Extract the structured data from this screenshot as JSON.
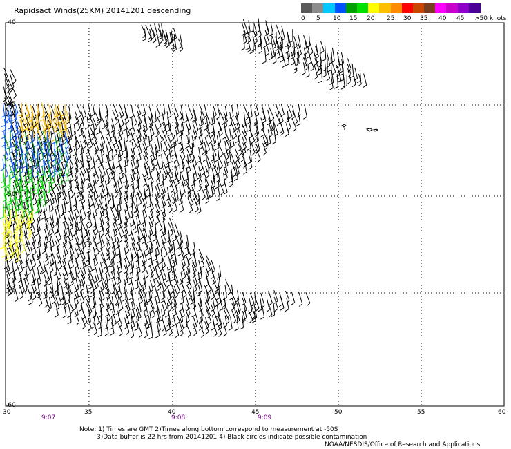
{
  "title": "Rapidsact Winds(25KM) 20141201 descending",
  "legend": {
    "colors": [
      "#5a5a5a",
      "#8c8c8c",
      "#00c8ff",
      "#0050ff",
      "#00a000",
      "#00e000",
      "#ffff00",
      "#ffbe00",
      "#ff8c00",
      "#ff0000",
      "#c84600",
      "#783c1e",
      "#ff00ff",
      "#c800c8",
      "#8c00c8",
      "#4b0096"
    ],
    "labels": [
      "0",
      "5",
      "10",
      "15",
      "20",
      "25",
      "30",
      "35",
      "40",
      "45",
      ">50 knots"
    ]
  },
  "axes": {
    "x_ticks": [
      "30",
      "35",
      "40",
      "45",
      "50",
      "55",
      "60"
    ],
    "y_ticks": [
      "-40",
      "-45",
      "-50",
      "-55",
      "-60"
    ]
  },
  "times": [
    "9:07",
    "9:08",
    "9:09"
  ],
  "notes": {
    "line1": "Note: 1) Times are GMT 2)Times along bottom correspond to measurement at -50S",
    "line2": "3)Data buffer is 22 hrs from 20141201 4) Black circles indicate possible contamination",
    "line3": "NOAA/NESDIS/Office of Research and Applications"
  }
}
